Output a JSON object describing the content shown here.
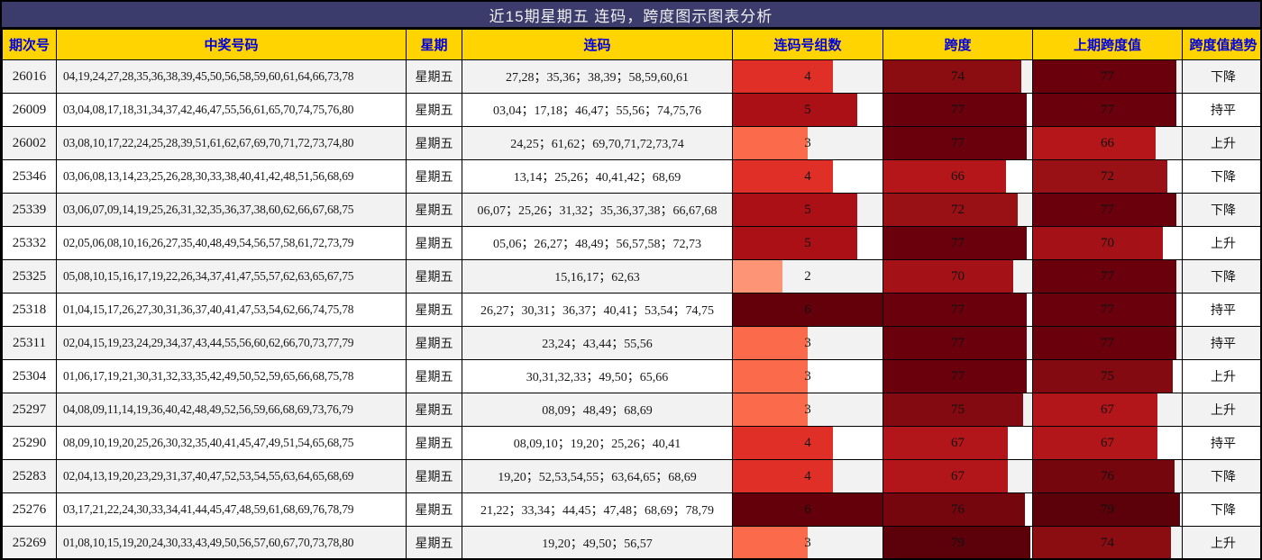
{
  "title": "近15期星期五 连码，跨度图示图表分析",
  "columns": {
    "period": "期次号",
    "numbers": "中奖号码",
    "weekday": "星期",
    "consecutive": "连码",
    "groups": "连码号组数",
    "span": "跨度",
    "prev_span": "上期跨度值",
    "trend": "跨度值趋势"
  },
  "colors": {
    "title_bar_bg": "#3C3C6C",
    "title_text": "#EFEFEF",
    "header_bg": "#FFD400",
    "header_text": "#0000E0",
    "row_alt_bg": "#F2F2F2",
    "border": "#000000"
  },
  "palette": {
    "groups": {
      "2": "#FC9475",
      "3": "#FB6A4A",
      "4": "#E02F26",
      "5": "#AA1016",
      "6": "#640009"
    },
    "span": {
      "66": "#B5161A",
      "67": "#B2151A",
      "70": "#A41218",
      "72": "#991015",
      "74": "#8B0D12",
      "75": "#830A10",
      "76": "#76060E",
      "77": "#6B000D",
      "79": "#5C0009"
    }
  },
  "scales": {
    "groups_max": 6,
    "span_max": 80
  },
  "table": {
    "rows": [
      {
        "period": "26016",
        "numbers": "04,19,24,27,28,35,36,38,39,45,50,56,58,59,60,61,64,66,73,78",
        "weekday": "星期五",
        "consecutive": "27,28；35,36；38,39；58,59,60,61",
        "groups": 4,
        "span": 74,
        "prev_span": 77,
        "trend": "下降"
      },
      {
        "period": "26009",
        "numbers": "03,04,08,17,18,31,34,37,42,46,47,55,56,61,65,70,74,75,76,80",
        "weekday": "星期五",
        "consecutive": "03,04；17,18；46,47；55,56；74,75,76",
        "groups": 5,
        "span": 77,
        "prev_span": 77,
        "trend": "持平"
      },
      {
        "period": "26002",
        "numbers": "03,08,10,17,22,24,25,28,39,51,61,62,67,69,70,71,72,73,74,80",
        "weekday": "星期五",
        "consecutive": "24,25；61,62；69,70,71,72,73,74",
        "groups": 3,
        "span": 77,
        "prev_span": 66,
        "trend": "上升"
      },
      {
        "period": "25346",
        "numbers": "03,06,08,13,14,23,25,26,28,30,33,38,40,41,42,48,51,56,68,69",
        "weekday": "星期五",
        "consecutive": "13,14；25,26；40,41,42；68,69",
        "groups": 4,
        "span": 66,
        "prev_span": 72,
        "trend": "下降"
      },
      {
        "period": "25339",
        "numbers": "03,06,07,09,14,19,25,26,31,32,35,36,37,38,60,62,66,67,68,75",
        "weekday": "星期五",
        "consecutive": "06,07；25,26；31,32；35,36,37,38；66,67,68",
        "groups": 5,
        "span": 72,
        "prev_span": 77,
        "trend": "下降"
      },
      {
        "period": "25332",
        "numbers": "02,05,06,08,10,16,26,27,35,40,48,49,54,56,57,58,61,72,73,79",
        "weekday": "星期五",
        "consecutive": "05,06；26,27；48,49；56,57,58；72,73",
        "groups": 5,
        "span": 77,
        "prev_span": 70,
        "trend": "上升"
      },
      {
        "period": "25325",
        "numbers": "05,08,10,15,16,17,19,22,26,34,37,41,47,55,57,62,63,65,67,75",
        "weekday": "星期五",
        "consecutive": "15,16,17；62,63",
        "groups": 2,
        "span": 70,
        "prev_span": 77,
        "trend": "下降"
      },
      {
        "period": "25318",
        "numbers": "01,04,15,17,26,27,30,31,36,37,40,41,47,53,54,62,66,74,75,78",
        "weekday": "星期五",
        "consecutive": "26,27；30,31；36,37；40,41；53,54；74,75",
        "groups": 6,
        "span": 77,
        "prev_span": 77,
        "trend": "持平"
      },
      {
        "period": "25311",
        "numbers": "02,04,15,19,23,24,29,34,37,43,44,55,56,60,62,66,70,73,77,79",
        "weekday": "星期五",
        "consecutive": "23,24；43,44；55,56",
        "groups": 3,
        "span": 77,
        "prev_span": 77,
        "trend": "持平"
      },
      {
        "period": "25304",
        "numbers": "01,06,17,19,21,30,31,32,33,35,42,49,50,52,59,65,66,68,75,78",
        "weekday": "星期五",
        "consecutive": "30,31,32,33；49,50；65,66",
        "groups": 3,
        "span": 77,
        "prev_span": 75,
        "trend": "上升"
      },
      {
        "period": "25297",
        "numbers": "04,08,09,11,14,19,36,40,42,48,49,52,56,59,66,68,69,73,76,79",
        "weekday": "星期五",
        "consecutive": "08,09；48,49；68,69",
        "groups": 3,
        "span": 75,
        "prev_span": 67,
        "trend": "上升"
      },
      {
        "period": "25290",
        "numbers": "08,09,10,19,20,25,26,30,32,35,40,41,45,47,49,51,54,65,68,75",
        "weekday": "星期五",
        "consecutive": "08,09,10；19,20；25,26；40,41",
        "groups": 4,
        "span": 67,
        "prev_span": 67,
        "trend": "持平"
      },
      {
        "period": "25283",
        "numbers": "02,04,13,19,20,23,29,31,37,40,47,52,53,54,55,63,64,65,68,69",
        "weekday": "星期五",
        "consecutive": "19,20；52,53,54,55；63,64,65；68,69",
        "groups": 4,
        "span": 67,
        "prev_span": 76,
        "trend": "下降"
      },
      {
        "period": "25276",
        "numbers": "03,17,21,22,24,30,33,34,41,44,45,47,48,59,61,68,69,76,78,79",
        "weekday": "星期五",
        "consecutive": "21,22；33,34；44,45；47,48；68,69；78,79",
        "groups": 6,
        "span": 76,
        "prev_span": 79,
        "trend": "下降"
      },
      {
        "period": "25269",
        "numbers": "01,08,10,15,19,20,24,30,33,43,49,50,56,57,60,67,70,73,78,80",
        "weekday": "星期五",
        "consecutive": "19,20；49,50；56,57",
        "groups": 3,
        "span": 79,
        "prev_span": 74,
        "trend": "上升"
      }
    ]
  },
  "chart_data": {
    "type": "table",
    "title": "近15期星期五 连码，跨度图示图表分析",
    "columns": [
      "期次号",
      "中奖号码",
      "星期",
      "连码",
      "连码号组数",
      "跨度",
      "上期跨度值",
      "跨度值趋势"
    ],
    "categories": [
      "26016",
      "26009",
      "26002",
      "25346",
      "25339",
      "25332",
      "25325",
      "25318",
      "25311",
      "25304",
      "25297",
      "25290",
      "25283",
      "25276",
      "25269"
    ],
    "series": [
      {
        "name": "连码号组数",
        "type": "bar",
        "values": [
          4,
          5,
          3,
          4,
          5,
          5,
          2,
          6,
          3,
          3,
          3,
          4,
          4,
          6,
          3
        ],
        "scale_max": 6
      },
      {
        "name": "跨度",
        "type": "bar",
        "values": [
          74,
          77,
          77,
          66,
          72,
          77,
          70,
          77,
          77,
          77,
          75,
          67,
          67,
          76,
          79
        ],
        "scale_max": 80
      },
      {
        "name": "上期跨度值",
        "type": "bar",
        "values": [
          77,
          77,
          66,
          72,
          77,
          70,
          77,
          77,
          77,
          75,
          67,
          67,
          76,
          79,
          74
        ],
        "scale_max": 80
      }
    ],
    "trend_labels": [
      "下降",
      "持平",
      "上升",
      "下降",
      "下降",
      "上升",
      "下降",
      "持平",
      "持平",
      "上升",
      "上升",
      "持平",
      "下降",
      "下降",
      "上升"
    ],
    "layout_hints": {
      "bars_embedded_in_table": true,
      "bar_color_scale": "darker red = higher value",
      "weekday_all": "星期五"
    }
  }
}
